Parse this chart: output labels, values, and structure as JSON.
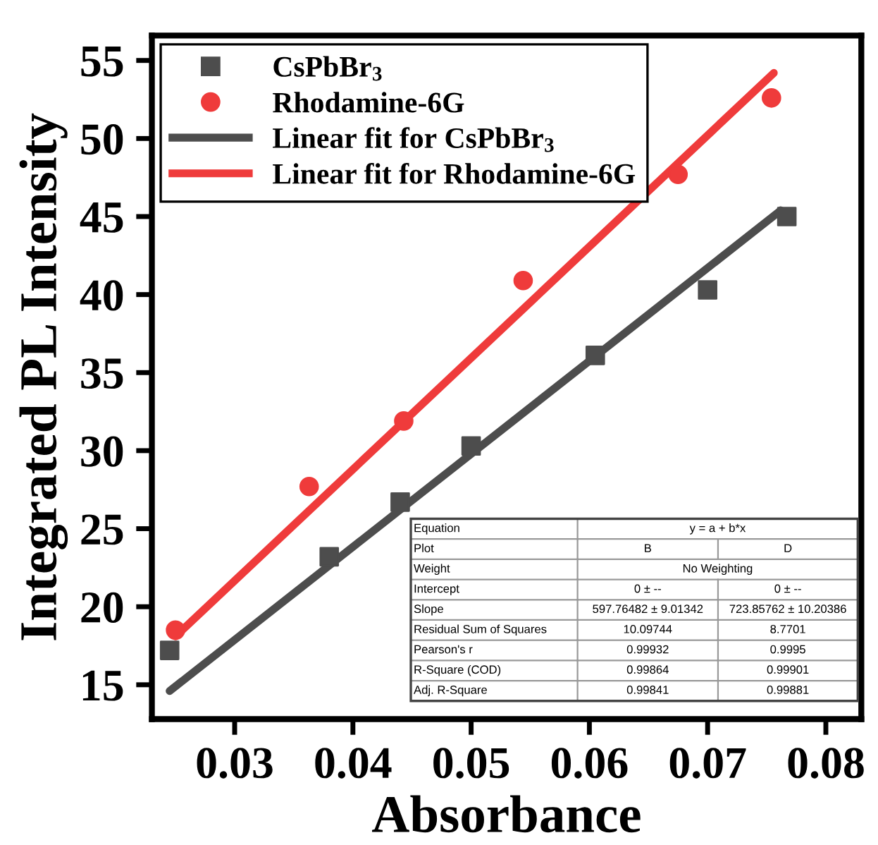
{
  "chart_data": {
    "type": "scatter",
    "xlabel": "Absorbance",
    "ylabel": "Integrated PL Intensity",
    "xlim": [
      0.023,
      0.083
    ],
    "ylim": [
      12.8,
      56.6
    ],
    "xticks": [
      0.03,
      0.04,
      0.05,
      0.06,
      0.07,
      0.08
    ],
    "yticks": [
      15,
      20,
      25,
      30,
      35,
      40,
      45,
      50,
      55
    ],
    "grid": false,
    "legend": "top left",
    "series": [
      {
        "name": "CsPbBr$_{3}$",
        "marker": "square",
        "color": "#4d4d4d",
        "x": [
          0.0245,
          0.038,
          0.044,
          0.05,
          0.0605,
          0.07,
          0.0767
        ],
        "values": [
          17.2,
          23.2,
          26.7,
          30.3,
          36.1,
          40.3,
          45.0
        ]
      },
      {
        "name": "Rhodamine-6G",
        "marker": "circle",
        "color": "#ef3b3b",
        "x": [
          0.025,
          0.0363,
          0.0443,
          0.0544,
          0.0675,
          0.0754
        ],
        "values": [
          18.5,
          27.7,
          31.9,
          40.9,
          47.7,
          52.6
        ]
      },
      {
        "name": "Linear fit for CsPbBr$_{3}$",
        "type": "line",
        "marker": "none",
        "line_style": "solid",
        "color": "#4d4d4d",
        "x": [
          0.0245,
          0.0762
        ],
        "values": [
          14.6,
          45.4
        ]
      },
      {
        "name": "Linear fit for Rhodamine-6G",
        "type": "line",
        "marker": "none",
        "line_style": "solid",
        "color": "#ef3b3b",
        "x": [
          0.025,
          0.0756
        ],
        "values": [
          18.1,
          54.2
        ]
      }
    ],
    "annotations": [
      "Equation",
      "y = a + b*x",
      "Plot",
      "B",
      "D",
      "Weight",
      "No Weighting",
      "Intercept",
      "0 ± --",
      "0 ± --",
      "Slope",
      "597.76482 ± 9.01342",
      "723.85762 ± 10.20386",
      "Residual Sum of Squares",
      "10.09744",
      "8.7701",
      "Pearson's r",
      "0.99932",
      "0.9995",
      "R-Square (COD)",
      "0.99864",
      "0.99901",
      "Adj. R-Square",
      "0.99841",
      "0.99881"
    ]
  }
}
